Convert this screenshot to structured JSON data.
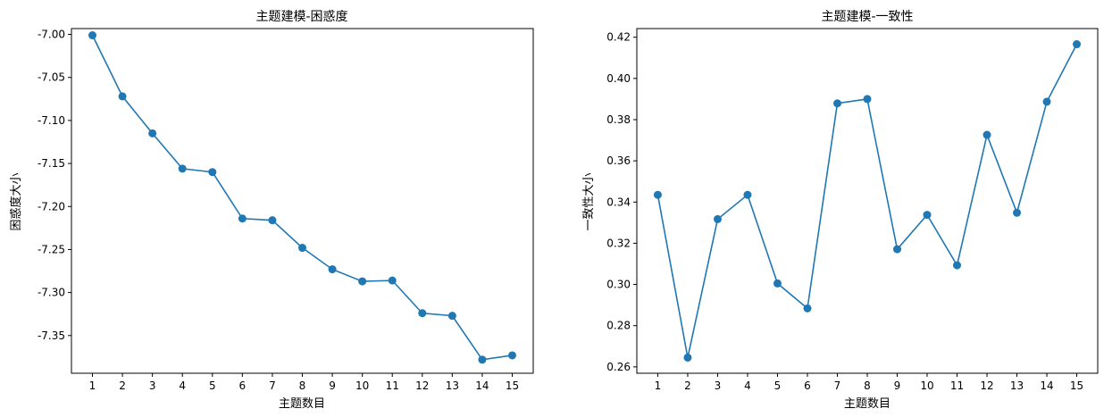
{
  "chart_data": [
    {
      "type": "line",
      "title": "主题建模-困惑度",
      "xlabel": "主题数目",
      "ylabel": "困惑度大小",
      "x": [
        1,
        2,
        3,
        4,
        5,
        6,
        7,
        8,
        9,
        10,
        11,
        12,
        13,
        14,
        15
      ],
      "series": [
        {
          "values": [
            -7.001,
            -7.072,
            -7.115,
            -7.156,
            -7.16,
            -7.214,
            -7.216,
            -7.248,
            -7.273,
            -7.287,
            -7.286,
            -7.324,
            -7.327,
            -7.378,
            -7.373
          ]
        }
      ],
      "xlim": [
        0.3,
        15.7
      ],
      "ylim": [
        -7.3938,
        -6.9932
      ],
      "yticks": [
        -7.0,
        -7.05,
        -7.1,
        -7.15,
        -7.2,
        -7.25,
        -7.3,
        -7.35
      ],
      "ytick_labels": [
        "-7.00",
        "-7.05",
        "-7.10",
        "-7.15",
        "-7.20",
        "-7.25",
        "-7.30",
        "-7.35"
      ],
      "grid": false,
      "marker": "circle",
      "color": "#1f77b4"
    },
    {
      "type": "line",
      "title": "主题建模-一致性",
      "xlabel": "主题数目",
      "ylabel": "一致性大小",
      "x": [
        1,
        2,
        3,
        4,
        5,
        6,
        7,
        8,
        9,
        10,
        11,
        12,
        13,
        14,
        15
      ],
      "series": [
        {
          "values": [
            0.3435,
            0.2645,
            0.3317,
            0.3435,
            0.3005,
            0.2884,
            0.3879,
            0.39,
            0.3171,
            0.3338,
            0.3093,
            0.3726,
            0.3348,
            0.3887,
            0.4166
          ]
        }
      ],
      "xlim": [
        0.3,
        15.7
      ],
      "ylim": [
        0.2569,
        0.4242
      ],
      "yticks": [
        0.26,
        0.28,
        0.3,
        0.32,
        0.34,
        0.36,
        0.38,
        0.4,
        0.42
      ],
      "ytick_labels": [
        "0.26",
        "0.28",
        "0.30",
        "0.32",
        "0.34",
        "0.36",
        "0.38",
        "0.40",
        "0.42"
      ],
      "grid": false,
      "marker": "circle",
      "color": "#1f77b4"
    }
  ]
}
